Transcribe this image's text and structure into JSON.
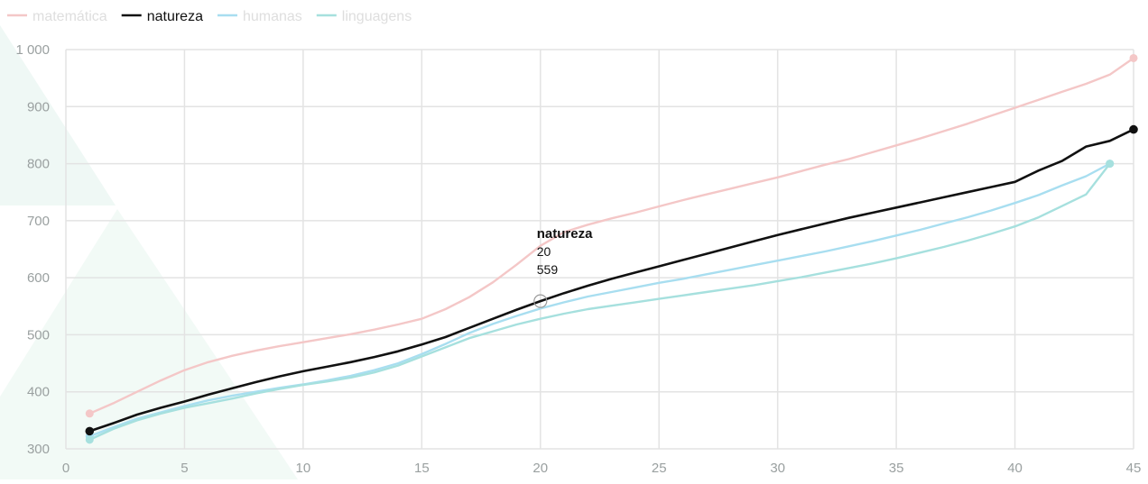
{
  "chart_data": {
    "type": "line",
    "xlim": [
      0,
      45
    ],
    "ylim": [
      300,
      1000
    ],
    "x_ticks": [
      0,
      5,
      10,
      15,
      20,
      25,
      30,
      35,
      40,
      45
    ],
    "y_ticks": [
      300,
      400,
      500,
      600,
      700,
      800,
      900,
      1000
    ],
    "x_tick_labels": [
      "0",
      "5",
      "10",
      "15",
      "20",
      "25",
      "30",
      "35",
      "40",
      "45"
    ],
    "y_tick_labels": [
      "300",
      "400",
      "500",
      "600",
      "700",
      "800",
      "900",
      "1 000"
    ],
    "grid": true,
    "legend_position": "top-left",
    "series": [
      {
        "name": "matemática",
        "color": "#f4c7c7",
        "emphasis": "faded",
        "x": [
          1,
          2,
          3,
          4,
          5,
          6,
          7,
          8,
          9,
          10,
          11,
          12,
          13,
          14,
          15,
          16,
          17,
          18,
          19,
          20,
          21,
          22,
          23,
          24,
          25,
          26,
          27,
          28,
          29,
          30,
          31,
          32,
          33,
          34,
          35,
          36,
          37,
          38,
          39,
          40,
          41,
          42,
          43,
          44,
          45
        ],
        "y": [
          362,
          380,
          400,
          420,
          438,
          452,
          463,
          472,
          480,
          487,
          494,
          501,
          509,
          518,
          528,
          545,
          566,
          592,
          623,
          656,
          680,
          693,
          704,
          714,
          725,
          736,
          746,
          756,
          766,
          776,
          787,
          798,
          808,
          820,
          832,
          844,
          857,
          870,
          884,
          898,
          912,
          926,
          940,
          956,
          985
        ]
      },
      {
        "name": "natureza",
        "color": "#111111",
        "emphasis": "highlighted",
        "x": [
          1,
          2,
          3,
          4,
          5,
          6,
          7,
          8,
          9,
          10,
          11,
          12,
          13,
          14,
          15,
          16,
          17,
          18,
          19,
          20,
          21,
          22,
          23,
          24,
          25,
          26,
          27,
          28,
          29,
          30,
          31,
          32,
          33,
          34,
          35,
          36,
          37,
          38,
          39,
          40,
          41,
          42,
          43,
          44,
          45
        ],
        "y": [
          331,
          345,
          360,
          372,
          383,
          395,
          406,
          417,
          427,
          436,
          444,
          452,
          461,
          471,
          483,
          496,
          512,
          528,
          544,
          559,
          573,
          586,
          598,
          609,
          620,
          631,
          642,
          653,
          664,
          675,
          685,
          695,
          705,
          714,
          723,
          732,
          741,
          750,
          759,
          768,
          788,
          805,
          830,
          840,
          860
        ]
      },
      {
        "name": "humanas",
        "color": "#a8def0",
        "emphasis": "faded",
        "x": [
          1,
          2,
          3,
          4,
          5,
          6,
          7,
          8,
          9,
          10,
          11,
          12,
          13,
          14,
          15,
          16,
          17,
          18,
          19,
          20,
          21,
          22,
          23,
          24,
          25,
          26,
          27,
          28,
          29,
          30,
          31,
          32,
          33,
          34,
          35,
          36,
          37,
          38,
          39,
          40,
          41,
          42,
          43,
          44
        ],
        "y": [
          322,
          338,
          353,
          364,
          375,
          385,
          393,
          400,
          407,
          413,
          420,
          428,
          438,
          450,
          466,
          484,
          503,
          519,
          533,
          546,
          557,
          567,
          575,
          583,
          591,
          598,
          606,
          614,
          622,
          630,
          638,
          646,
          655,
          664,
          674,
          684,
          695,
          706,
          718,
          731,
          745,
          762,
          778,
          800
        ]
      },
      {
        "name": "linguagens",
        "color": "#a6e0de",
        "emphasis": "faded",
        "x": [
          1,
          2,
          3,
          4,
          5,
          6,
          7,
          8,
          9,
          10,
          11,
          12,
          13,
          14,
          15,
          16,
          17,
          18,
          19,
          20,
          21,
          22,
          23,
          24,
          25,
          26,
          27,
          28,
          29,
          30,
          31,
          32,
          33,
          34,
          35,
          36,
          37,
          38,
          39,
          40,
          41,
          42,
          43,
          44
        ],
        "y": [
          316,
          335,
          350,
          362,
          372,
          380,
          388,
          397,
          405,
          412,
          418,
          425,
          434,
          446,
          462,
          478,
          494,
          506,
          518,
          528,
          537,
          545,
          551,
          557,
          563,
          569,
          575,
          581,
          587,
          594,
          601,
          609,
          617,
          625,
          634,
          644,
          654,
          665,
          677,
          690,
          706,
          726,
          746,
          800
        ]
      }
    ],
    "tooltip": {
      "series": "natureza",
      "x_value": "20",
      "y_value": "559"
    }
  }
}
